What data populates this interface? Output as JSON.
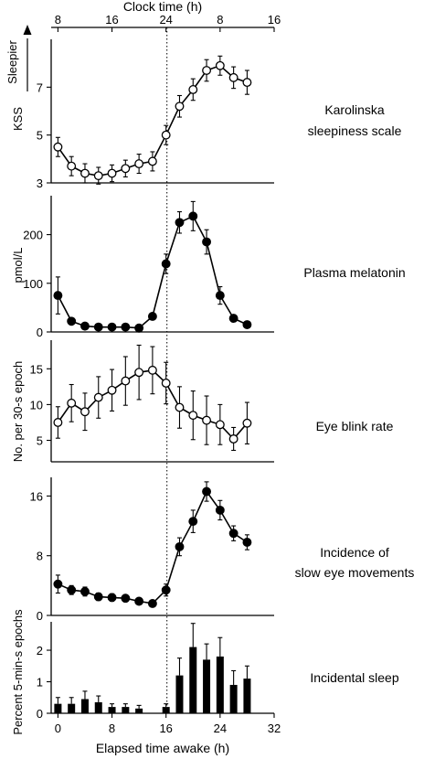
{
  "figure": {
    "top_axis_title": "Clock time (h)",
    "top_ticks": [
      "8",
      "16",
      "24",
      "8",
      "16"
    ],
    "bottom_axis_title": "Elapsed time awake (h)",
    "bottom_ticks": [
      "0",
      "8",
      "16",
      "24",
      "32"
    ],
    "sleepier_label": "Sleepier",
    "sleepier_arrow_icon": "arrow-up-icon"
  },
  "chart_data": [
    {
      "type": "line",
      "panel_label_lines": [
        "Karolinska",
        "sleepiness scale"
      ],
      "ylabel": "KSS",
      "ylim": [
        3,
        9
      ],
      "yticks": [
        3,
        5,
        7
      ],
      "marker": "open",
      "x": [
        0,
        2,
        4,
        6,
        8,
        10,
        12,
        14,
        16,
        18,
        20,
        22,
        24,
        26,
        28
      ],
      "values": [
        4.5,
        3.7,
        3.4,
        3.3,
        3.4,
        3.6,
        3.8,
        3.9,
        5.0,
        6.2,
        6.9,
        7.7,
        7.9,
        7.4,
        7.2
      ],
      "errors": [
        0.4,
        0.4,
        0.4,
        0.35,
        0.35,
        0.35,
        0.4,
        0.4,
        0.4,
        0.45,
        0.45,
        0.45,
        0.4,
        0.45,
        0.5
      ]
    },
    {
      "type": "line",
      "panel_label_lines": [
        "Plasma melatonin"
      ],
      "ylabel": "pmol/L",
      "ylim": [
        0,
        280
      ],
      "yticks": [
        0,
        100,
        200
      ],
      "marker": "filled",
      "x": [
        0,
        2,
        4,
        6,
        8,
        10,
        12,
        14,
        16,
        18,
        20,
        22,
        24,
        26,
        28
      ],
      "values": [
        75,
        22,
        12,
        10,
        10,
        10,
        8,
        32,
        140,
        225,
        238,
        185,
        75,
        28,
        15
      ],
      "errors": [
        38,
        5,
        3,
        2,
        2,
        2,
        2,
        6,
        20,
        22,
        30,
        25,
        18,
        6,
        3
      ]
    },
    {
      "type": "line",
      "panel_label_lines": [
        "Eye blink rate"
      ],
      "ylabel": "No. per 30-s epoch",
      "ylim": [
        2,
        19
      ],
      "yticks": [
        5,
        10,
        15
      ],
      "marker": "open",
      "x": [
        0,
        2,
        4,
        6,
        8,
        10,
        12,
        14,
        16,
        18,
        20,
        22,
        24,
        26,
        28
      ],
      "values": [
        7.5,
        10.2,
        9,
        11,
        12,
        13.3,
        14.5,
        14.8,
        13,
        9.6,
        8.5,
        7.8,
        7.2,
        5.2,
        7.4
      ],
      "errors": [
        2.2,
        2.6,
        2.6,
        2.9,
        2.9,
        3.4,
        3.8,
        3.3,
        2.9,
        2.9,
        3.4,
        3.4,
        2.8,
        1.6,
        2.9
      ]
    },
    {
      "type": "line",
      "panel_label_lines": [
        "Incidence of",
        "slow eye movements"
      ],
      "ylabel": "",
      "ylim": [
        0,
        18.5
      ],
      "yticks": [
        0,
        8,
        16
      ],
      "marker": "filled",
      "x": [
        0,
        2,
        4,
        6,
        8,
        10,
        12,
        14,
        16,
        18,
        20,
        22,
        24,
        26,
        28
      ],
      "values": [
        4.2,
        3.4,
        3.2,
        2.5,
        2.4,
        2.3,
        1.9,
        1.6,
        3.4,
        9.2,
        12.6,
        16.6,
        14.1,
        11,
        9.8
      ],
      "errors": [
        1.2,
        0.6,
        0.6,
        0.5,
        0.5,
        0.4,
        0.4,
        0.4,
        0.8,
        1.2,
        1.5,
        1.3,
        1.3,
        1.0,
        1.0
      ]
    },
    {
      "type": "bar",
      "panel_label_lines": [
        "Incidental sleep"
      ],
      "ylabel": "Percent 5-min-s epochs",
      "ylim": [
        0,
        2.9
      ],
      "yticks": [
        0,
        1,
        2
      ],
      "x": [
        0,
        2,
        4,
        6,
        8,
        10,
        12,
        14,
        16,
        18,
        20,
        22,
        24,
        26,
        28
      ],
      "values": [
        0.3,
        0.3,
        0.45,
        0.35,
        0.2,
        0.2,
        0.15,
        0,
        0.2,
        1.2,
        2.1,
        1.7,
        1.8,
        0.9,
        1.1
      ],
      "errors": [
        0.2,
        0.2,
        0.25,
        0.2,
        0.1,
        0.1,
        0.1,
        0,
        0.1,
        0.55,
        0.75,
        0.5,
        0.6,
        0.45,
        0.4
      ]
    }
  ]
}
